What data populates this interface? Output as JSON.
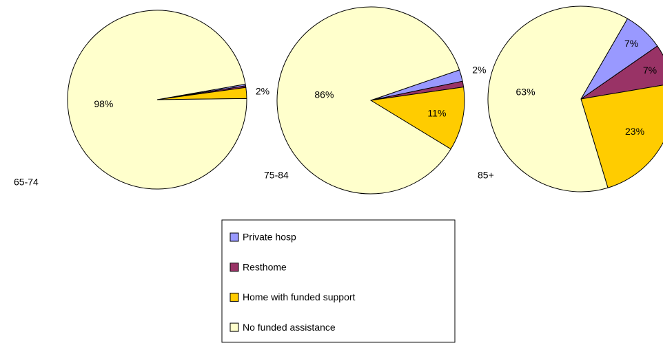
{
  "chart_data": {
    "type": "pie",
    "categories": [
      "Private hosp",
      "Resthome",
      "Home with funded support",
      "No funded assistance"
    ],
    "colors": [
      "#9999ff",
      "#993366",
      "#ffcc00",
      "#ffffcc"
    ],
    "series": [
      {
        "name": "65-74",
        "values": [
          0.3,
          0.3,
          2,
          98
        ],
        "value_labels": [
          null,
          null,
          "2%",
          "98%"
        ]
      },
      {
        "name": "75-84",
        "values": [
          2,
          1,
          11,
          86
        ],
        "value_labels": [
          "2%",
          null,
          "11%",
          "86%"
        ]
      },
      {
        "name": "85+",
        "values": [
          7,
          7,
          23,
          63
        ],
        "value_labels": [
          "7%",
          "7%",
          "23%",
          "63%"
        ]
      }
    ]
  }
}
